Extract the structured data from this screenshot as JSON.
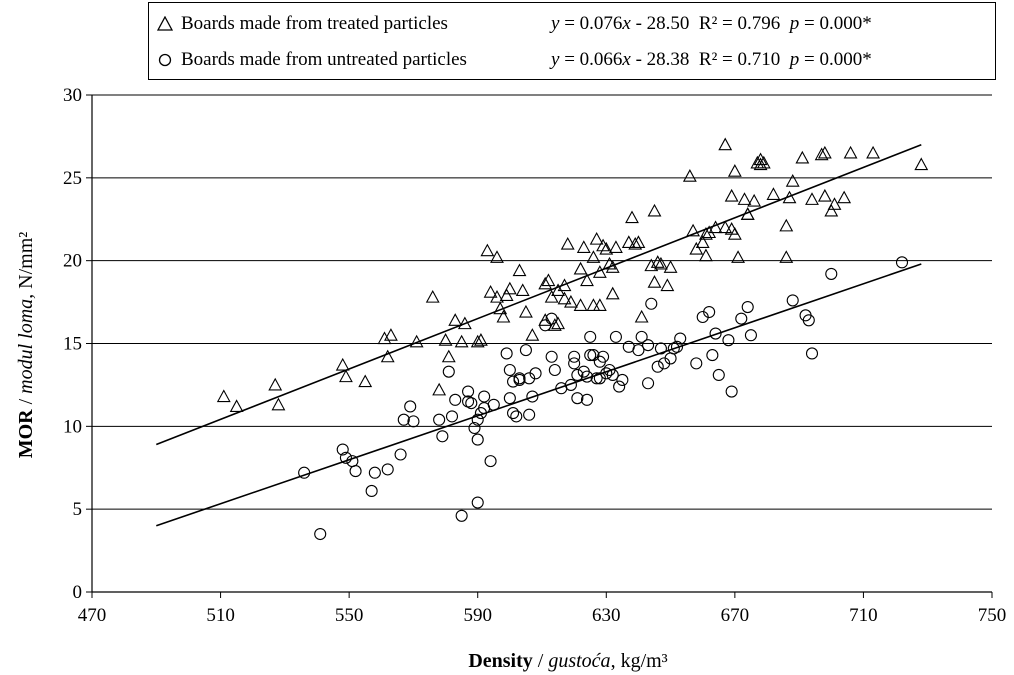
{
  "chart_data": {
    "type": "scatter",
    "x_min": 470,
    "x_max": 750,
    "x_step": 40,
    "y_min": 0,
    "y_max": 30,
    "y_step": 5,
    "x_ticks": [
      "470",
      "510",
      "550",
      "590",
      "630",
      "670",
      "710",
      "750"
    ],
    "y_ticks": [
      "0",
      "5",
      "10",
      "15",
      "20",
      "25",
      "30"
    ],
    "xlabel": {
      "bold": "Density",
      "sep": " / ",
      "italic": "gustoća",
      "unit": ", kg/m³"
    },
    "ylabel": {
      "bold": "MOR",
      "sep": " / ",
      "italic": "modul loma,",
      "unit": " N/mm²"
    },
    "grid": "horizontal",
    "legend_position": "top",
    "series": [
      {
        "name": "Boards made from treated particles",
        "marker": "triangle",
        "equation": {
          "y": "y",
          "eq1": " = 0.076",
          "x": "x",
          "eq2": " - 28.50",
          "r2": "R² = 0.796",
          "p_sym": "p",
          "p_val": " = 0.000*"
        },
        "trend": {
          "x_start": 490,
          "x_end": 728,
          "y_start": 8.9,
          "y_end": 27.0
        },
        "points": [
          [
            511,
            11.8
          ],
          [
            515,
            11.2
          ],
          [
            527,
            12.5
          ],
          [
            528,
            11.3
          ],
          [
            548,
            13.7
          ],
          [
            549,
            13.0
          ],
          [
            555,
            12.7
          ],
          [
            561,
            15.3
          ],
          [
            562,
            14.2
          ],
          [
            563,
            15.5
          ],
          [
            571,
            15.1
          ],
          [
            576,
            17.8
          ],
          [
            578,
            12.2
          ],
          [
            580,
            15.2
          ],
          [
            581,
            14.2
          ],
          [
            583,
            16.4
          ],
          [
            585,
            15.1
          ],
          [
            586,
            16.2
          ],
          [
            590,
            15.1
          ],
          [
            591,
            15.2
          ],
          [
            593,
            20.6
          ],
          [
            594,
            18.1
          ],
          [
            596,
            20.2
          ],
          [
            596,
            17.8
          ],
          [
            597,
            17.1
          ],
          [
            598,
            16.6
          ],
          [
            599,
            17.9
          ],
          [
            600,
            18.3
          ],
          [
            603,
            19.4
          ],
          [
            604,
            18.2
          ],
          [
            605,
            16.9
          ],
          [
            607,
            15.5
          ],
          [
            611,
            18.6
          ],
          [
            611,
            16.4
          ],
          [
            612,
            18.8
          ],
          [
            613,
            17.8
          ],
          [
            614,
            16.1
          ],
          [
            615,
            16.2
          ],
          [
            615,
            18.2
          ],
          [
            617,
            17.7
          ],
          [
            617,
            18.5
          ],
          [
            618,
            21.0
          ],
          [
            619,
            17.5
          ],
          [
            622,
            17.3
          ],
          [
            622,
            19.5
          ],
          [
            623,
            20.8
          ],
          [
            624,
            18.8
          ],
          [
            626,
            20.2
          ],
          [
            626,
            17.3
          ],
          [
            627,
            21.3
          ],
          [
            628,
            17.3
          ],
          [
            628,
            19.3
          ],
          [
            629,
            20.9
          ],
          [
            630,
            20.7
          ],
          [
            631,
            19.8
          ],
          [
            632,
            19.6
          ],
          [
            632,
            18.0
          ],
          [
            633,
            20.8
          ],
          [
            637,
            21.1
          ],
          [
            638,
            22.6
          ],
          [
            639,
            21.0
          ],
          [
            640,
            21.1
          ],
          [
            641,
            16.6
          ],
          [
            644,
            19.7
          ],
          [
            645,
            23.0
          ],
          [
            645,
            18.7
          ],
          [
            646,
            19.9
          ],
          [
            647,
            19.8
          ],
          [
            649,
            18.5
          ],
          [
            650,
            19.6
          ],
          [
            656,
            25.1
          ],
          [
            657,
            21.8
          ],
          [
            658,
            20.7
          ],
          [
            660,
            21.1
          ],
          [
            661,
            20.3
          ],
          [
            661,
            21.6
          ],
          [
            662,
            21.7
          ],
          [
            664,
            22.0
          ],
          [
            667,
            27.0
          ],
          [
            667,
            22.0
          ],
          [
            669,
            21.9
          ],
          [
            669,
            23.9
          ],
          [
            670,
            21.6
          ],
          [
            670,
            25.4
          ],
          [
            671,
            20.2
          ],
          [
            673,
            23.7
          ],
          [
            674,
            22.8
          ],
          [
            674,
            22.8
          ],
          [
            676,
            23.6
          ],
          [
            677,
            25.9
          ],
          [
            678,
            25.8
          ],
          [
            678,
            26.1
          ],
          [
            679,
            25.9
          ],
          [
            682,
            24.0
          ],
          [
            686,
            20.2
          ],
          [
            686,
            22.1
          ],
          [
            687,
            23.8
          ],
          [
            688,
            24.8
          ],
          [
            691,
            26.2
          ],
          [
            694,
            23.7
          ],
          [
            697,
            26.4
          ],
          [
            698,
            26.5
          ],
          [
            698,
            23.9
          ],
          [
            700,
            23.0
          ],
          [
            701,
            23.4
          ],
          [
            704,
            23.8
          ],
          [
            706,
            26.5
          ],
          [
            713,
            26.5
          ],
          [
            728,
            25.8
          ]
        ]
      },
      {
        "name": "Boards made from untreated particles",
        "marker": "circle",
        "equation": {
          "y": "y",
          "eq1": " = 0.066",
          "x": "x",
          "eq2": " - 28.38",
          "r2": "R² = 0.710",
          "p_sym": "p",
          "p_val": " = 0.000*"
        },
        "trend": {
          "x_start": 490,
          "x_end": 728,
          "y_start": 4.0,
          "y_end": 19.8
        },
        "points": [
          [
            536,
            7.2
          ],
          [
            541,
            3.5
          ],
          [
            548,
            8.6
          ],
          [
            549,
            8.1
          ],
          [
            551,
            7.9
          ],
          [
            552,
            7.3
          ],
          [
            557,
            6.1
          ],
          [
            558,
            7.2
          ],
          [
            562,
            7.4
          ],
          [
            566,
            8.3
          ],
          [
            567,
            10.4
          ],
          [
            569,
            11.2
          ],
          [
            570,
            10.3
          ],
          [
            578,
            10.4
          ],
          [
            579,
            9.4
          ],
          [
            581,
            13.3
          ],
          [
            582,
            10.6
          ],
          [
            583,
            11.6
          ],
          [
            585,
            4.6
          ],
          [
            587,
            11.5
          ],
          [
            587,
            12.1
          ],
          [
            588,
            11.4
          ],
          [
            589,
            9.9
          ],
          [
            590,
            10.4
          ],
          [
            590,
            9.2
          ],
          [
            590,
            5.4
          ],
          [
            591,
            10.8
          ],
          [
            592,
            11.1
          ],
          [
            592,
            11.8
          ],
          [
            594,
            7.9
          ],
          [
            595,
            11.3
          ],
          [
            599,
            14.4
          ],
          [
            600,
            11.7
          ],
          [
            600,
            13.4
          ],
          [
            601,
            12.7
          ],
          [
            601,
            10.8
          ],
          [
            602,
            10.6
          ],
          [
            603,
            12.9
          ],
          [
            603,
            12.8
          ],
          [
            605,
            14.6
          ],
          [
            606,
            12.9
          ],
          [
            606,
            10.7
          ],
          [
            607,
            11.8
          ],
          [
            608,
            13.2
          ],
          [
            611,
            16.1
          ],
          [
            613,
            14.2
          ],
          [
            613,
            16.5
          ],
          [
            614,
            13.4
          ],
          [
            616,
            12.3
          ],
          [
            619,
            12.5
          ],
          [
            620,
            14.2
          ],
          [
            620,
            13.8
          ],
          [
            621,
            11.7
          ],
          [
            621,
            13.1
          ],
          [
            623,
            13.3
          ],
          [
            624,
            11.6
          ],
          [
            624,
            13.0
          ],
          [
            625,
            15.4
          ],
          [
            625,
            14.3
          ],
          [
            626,
            14.3
          ],
          [
            627,
            12.9
          ],
          [
            628,
            13.9
          ],
          [
            628,
            12.9
          ],
          [
            629,
            14.2
          ],
          [
            630,
            13.2
          ],
          [
            631,
            13.4
          ],
          [
            632,
            13.1
          ],
          [
            633,
            15.4
          ],
          [
            634,
            12.4
          ],
          [
            635,
            12.8
          ],
          [
            637,
            14.8
          ],
          [
            640,
            14.6
          ],
          [
            641,
            15.4
          ],
          [
            643,
            14.9
          ],
          [
            643,
            12.6
          ],
          [
            644,
            17.4
          ],
          [
            646,
            13.6
          ],
          [
            647,
            14.7
          ],
          [
            648,
            13.8
          ],
          [
            650,
            14.1
          ],
          [
            651,
            14.7
          ],
          [
            652,
            14.8
          ],
          [
            653,
            15.3
          ],
          [
            658,
            13.8
          ],
          [
            660,
            16.6
          ],
          [
            662,
            16.9
          ],
          [
            663,
            14.3
          ],
          [
            664,
            15.6
          ],
          [
            665,
            13.1
          ],
          [
            668,
            15.2
          ],
          [
            669,
            12.1
          ],
          [
            672,
            16.5
          ],
          [
            674,
            17.2
          ],
          [
            675,
            15.5
          ],
          [
            688,
            17.6
          ],
          [
            692,
            16.7
          ],
          [
            693,
            16.4
          ],
          [
            694,
            14.4
          ],
          [
            700,
            19.2
          ],
          [
            722,
            19.9
          ]
        ]
      }
    ]
  }
}
